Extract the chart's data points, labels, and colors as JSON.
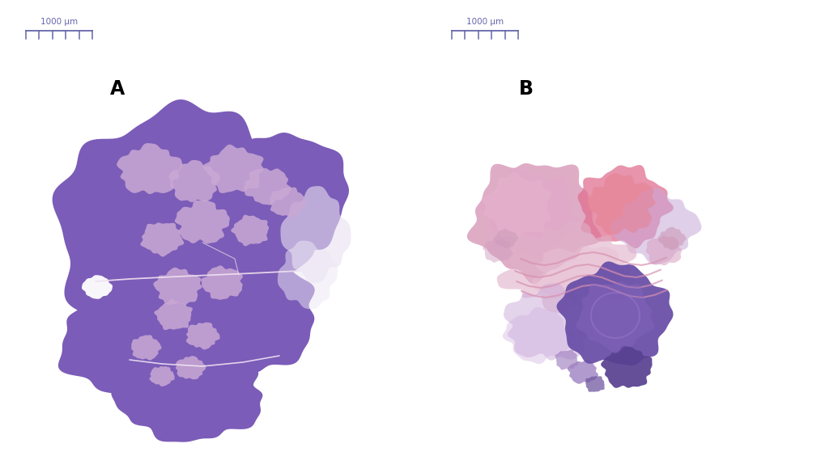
{
  "background_color": "#ffffff",
  "panel_A_label": "A",
  "panel_B_label": "B",
  "scale_bar_text": "1000 μm",
  "label_fontsize": 17,
  "label_fontweight": "bold",
  "scale_color": "#6666aa",
  "thymus_A_main": "#7B5CB8",
  "thymus_A_medulla": "#C9A8D4",
  "thymus_A_light": "#B898CC",
  "thymus_B_pink_main": "#D898B8",
  "thymus_B_pink_bright": "#E07090",
  "thymus_B_pink_light": "#E8C0D4",
  "thymus_B_purple": "#6A50A8",
  "thymus_B_purple_dark": "#584090",
  "thymus_B_lavender": "#C8A8D8"
}
